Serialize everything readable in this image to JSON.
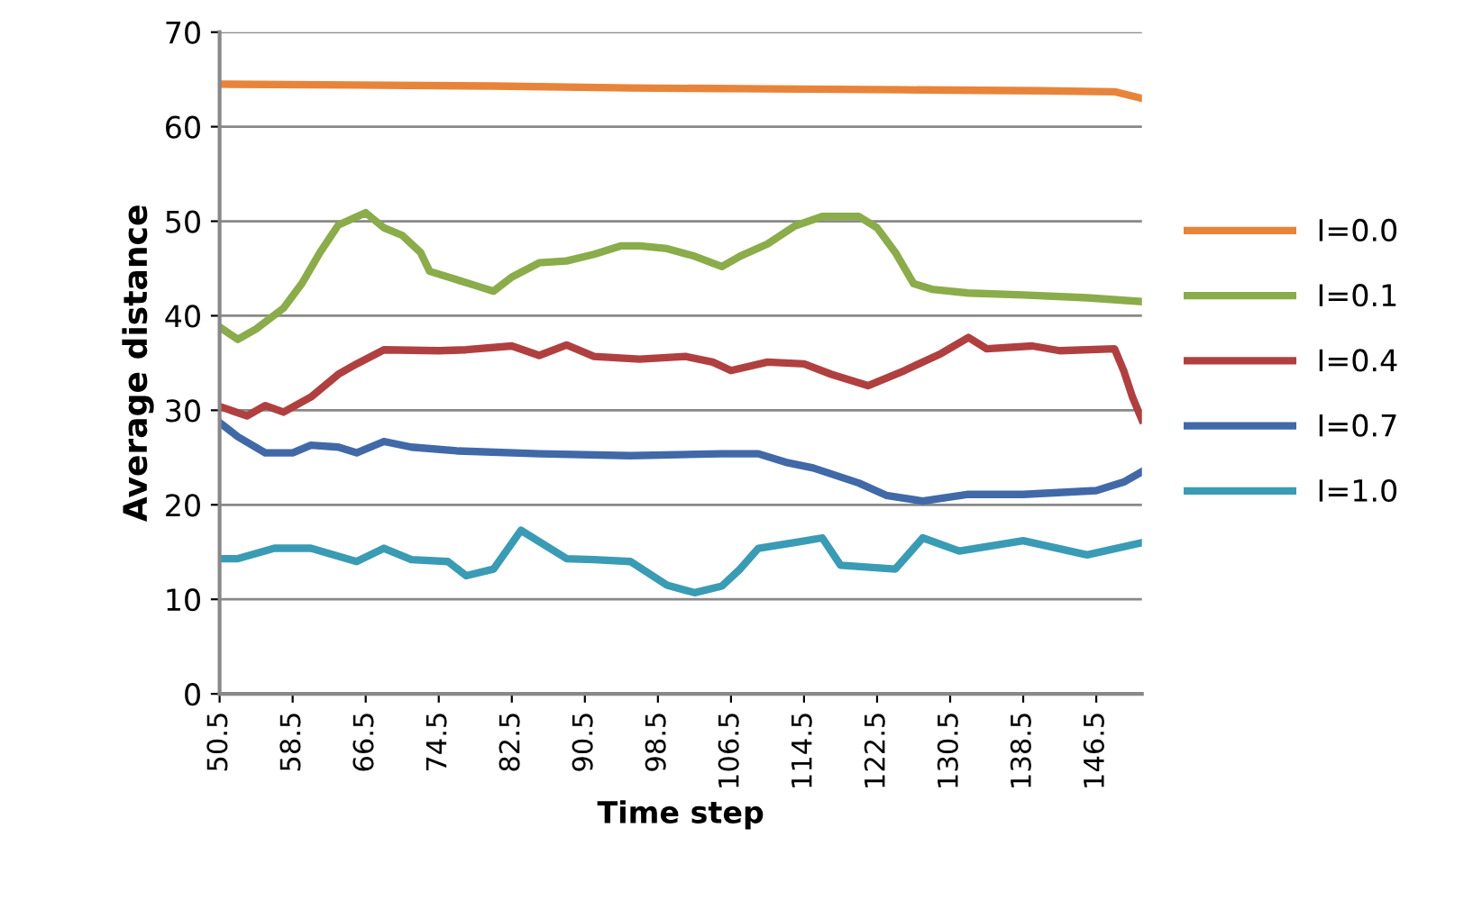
{
  "chart_data": {
    "type": "line",
    "xlabel": "Time step",
    "ylabel": "Average distance",
    "xlim": [
      50.5,
      151.5
    ],
    "ylim": [
      0,
      70
    ],
    "xticks": [
      50.5,
      58.5,
      66.5,
      74.5,
      82.5,
      90.5,
      98.5,
      106.5,
      114.5,
      122.5,
      130.5,
      138.5,
      146.5
    ],
    "yticks": [
      0,
      10,
      20,
      30,
      40,
      50,
      60,
      70
    ],
    "grid": "y",
    "legend": "right",
    "line_style": "solid",
    "marker": "none",
    "series": [
      {
        "name": "I=0.0",
        "color": "#e8843a",
        "x": [
          50.5,
          65.5,
          80.5,
          95.5,
          110.5,
          125.5,
          140.5,
          148.5,
          151.5
        ],
        "values": [
          64.5,
          64.4,
          64.3,
          64.1,
          64.0,
          63.9,
          63.8,
          63.7,
          63.0
        ]
      },
      {
        "name": "I=0.1",
        "color": "#8aac4a",
        "x": [
          50.5,
          52.5,
          54.5,
          57.5,
          59.5,
          61.5,
          63.5,
          66.5,
          68.5,
          70.5,
          72.5,
          73.5,
          76.5,
          78.5,
          80.5,
          82.5,
          85.5,
          88.5,
          91.5,
          94.5,
          96.5,
          99.5,
          102.5,
          105.5,
          107.5,
          110.5,
          113.5,
          116.5,
          120.5,
          122.5,
          124.5,
          126.5,
          128.5,
          132.5,
          138.5,
          145.5,
          151.5
        ],
        "values": [
          38.8,
          37.5,
          38.6,
          40.8,
          43.4,
          46.7,
          49.6,
          50.9,
          49.3,
          48.5,
          46.7,
          44.7,
          43.8,
          43.2,
          42.6,
          44.1,
          45.6,
          45.8,
          46.5,
          47.4,
          47.4,
          47.1,
          46.3,
          45.2,
          46.3,
          47.6,
          49.5,
          50.5,
          50.5,
          49.3,
          46.7,
          43.4,
          42.8,
          42.4,
          42.2,
          41.9,
          41.5
        ]
      },
      {
        "name": "I=0.4",
        "color": "#b04040",
        "x": [
          50.5,
          53.5,
          55.5,
          57.5,
          60.5,
          63.5,
          65.5,
          68.5,
          74.5,
          77.5,
          82.5,
          85.5,
          88.5,
          91.5,
          96.5,
          101.5,
          104.5,
          106.5,
          110.5,
          114.5,
          117.5,
          121.5,
          125.5,
          129.5,
          132.5,
          134.5,
          139.5,
          142.5,
          148.5,
          149.5,
          150.5,
          151.5
        ],
        "values": [
          30.4,
          29.4,
          30.5,
          29.8,
          31.4,
          33.8,
          34.9,
          36.4,
          36.3,
          36.4,
          36.8,
          35.8,
          36.9,
          35.7,
          35.4,
          35.7,
          35.1,
          34.2,
          35.1,
          34.9,
          33.8,
          32.6,
          34.2,
          36.0,
          37.7,
          36.5,
          36.8,
          36.3,
          36.5,
          34.2,
          31.3,
          29.0
        ]
      },
      {
        "name": "I=0.7",
        "color": "#4169a8",
        "x": [
          50.5,
          52.5,
          55.5,
          58.5,
          60.5,
          63.5,
          65.5,
          68.5,
          71.5,
          76.5,
          85.5,
          95.5,
          105.5,
          109.5,
          112.5,
          115.5,
          120.5,
          123.5,
          127.5,
          132.5,
          138.5,
          146.5,
          149.5,
          151.5
        ],
        "values": [
          28.7,
          27.2,
          25.5,
          25.5,
          26.3,
          26.1,
          25.5,
          26.7,
          26.1,
          25.7,
          25.4,
          25.2,
          25.4,
          25.4,
          24.5,
          23.9,
          22.3,
          21.0,
          20.4,
          21.1,
          21.1,
          21.5,
          22.4,
          23.5
        ]
      },
      {
        "name": "I=1.0",
        "color": "#3a9bb5",
        "x": [
          50.5,
          52.5,
          56.5,
          60.5,
          65.5,
          68.5,
          71.5,
          75.5,
          77.5,
          80.5,
          83.5,
          88.5,
          91.5,
          95.5,
          99.5,
          102.5,
          105.5,
          107.5,
          109.5,
          113.5,
          116.5,
          118.5,
          124.5,
          127.5,
          131.5,
          138.5,
          145.5,
          151.5
        ],
        "values": [
          14.3,
          14.3,
          15.4,
          15.4,
          14.0,
          15.4,
          14.2,
          14.0,
          12.5,
          13.2,
          17.3,
          14.3,
          14.2,
          14.0,
          11.5,
          10.7,
          11.4,
          13.2,
          15.4,
          16.0,
          16.5,
          13.6,
          13.2,
          16.5,
          15.1,
          16.2,
          14.7,
          16.0
        ]
      }
    ]
  }
}
